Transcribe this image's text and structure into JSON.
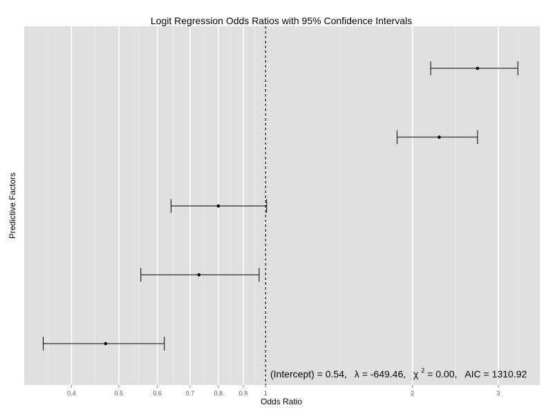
{
  "chart_data": {
    "type": "forest",
    "title": "Logit Regression Odds Ratios with 95% Confidence Intervals",
    "xlabel": "Odds Ratio",
    "ylabel": "Predictive Factors",
    "x_scale": "log",
    "xlim": [
      0.32,
      3.65
    ],
    "x_ticks": [
      0.4,
      0.5,
      0.6,
      0.7,
      0.8,
      0.9,
      1,
      2,
      3
    ],
    "x_tick_labels": [
      "0.4",
      "0.5",
      "0.6",
      "0.7",
      "0.8",
      "0.9",
      "1",
      "2",
      "3"
    ],
    "reference_line": 1,
    "grid": true,
    "points": [
      {
        "or": 2.72,
        "lower": 2.18,
        "upper": 3.29
      },
      {
        "or": 2.27,
        "lower": 1.86,
        "upper": 2.72
      },
      {
        "or": 0.8,
        "lower": 0.64,
        "upper": 1.005
      },
      {
        "or": 0.73,
        "lower": 0.555,
        "upper": 0.97
      },
      {
        "or": 0.47,
        "lower": 0.35,
        "upper": 0.62
      }
    ],
    "annotation": {
      "intercept_text": "(Intercept) = 0.54,",
      "lambda_symbol": "λ",
      "lambda_text": " = -649.46,",
      "chi_symbol": "χ",
      "chi_sup": "2",
      "chi_text": " = 0.00,",
      "aic_text": "AIC = 1310.92"
    },
    "colors": {
      "panel": "#e0e0e0",
      "grid_major": "#ffffff",
      "grid_minor": "#ebebeb",
      "marks": "#000000",
      "reference_line": "#000000"
    }
  }
}
